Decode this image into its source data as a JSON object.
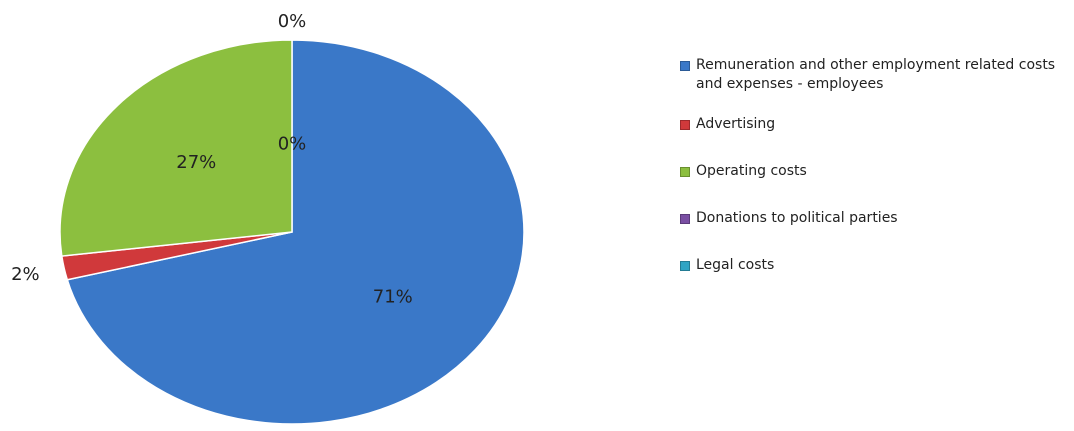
{
  "chart_data": {
    "type": "pie",
    "title": "",
    "slices": [
      {
        "label": "Remuneration and other employment related costs and expenses - employees",
        "value": 71,
        "display": "71%",
        "color": "#3a78c8"
      },
      {
        "label": "Advertising",
        "value": 2,
        "display": "2%",
        "color": "#d0393b"
      },
      {
        "label": "Operating costs",
        "value": 27,
        "display": "27%",
        "color": "#8cbf3f"
      },
      {
        "label": "Donations to political parties",
        "value": 0,
        "display": "0%",
        "color": "#7a4fa3"
      },
      {
        "label": "Legal costs",
        "value": 0,
        "display": "0%",
        "color": "#2fa4c4"
      }
    ],
    "legend_position": "right"
  }
}
